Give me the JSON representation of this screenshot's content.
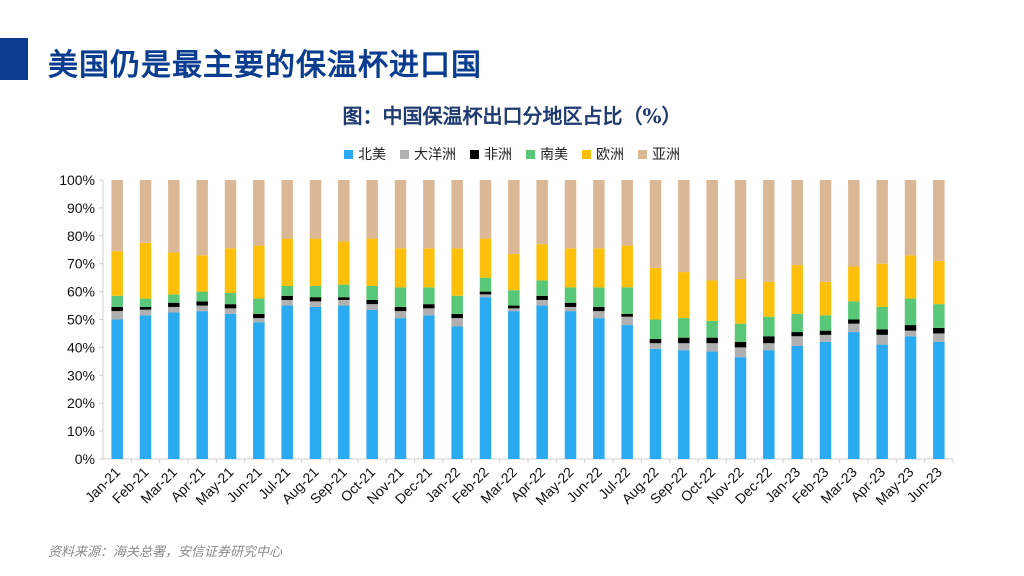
{
  "slide_title": "美国仍是最主要的保温杯进口国",
  "source": "资料来源：海关总署，安信证券研究中心",
  "colors": {
    "accent": "#0a3d8f",
    "北美": "#2aaaf0",
    "大洋洲": "#b0b0b0",
    "非洲": "#000000",
    "南美": "#58c878",
    "欧洲": "#fcbf0a",
    "亚洲": "#dbb895"
  },
  "chart_data": {
    "type": "bar",
    "stacked": true,
    "title": "图：中国保温杯出口分地区占比（%）",
    "legend": [
      "北美",
      "大洋洲",
      "非洲",
      "南美",
      "欧洲",
      "亚洲"
    ],
    "legend_position": "top",
    "y_ticks": [
      "0%",
      "10%",
      "20%",
      "30%",
      "40%",
      "50%",
      "60%",
      "70%",
      "80%",
      "90%",
      "100%"
    ],
    "ylim": [
      0,
      100
    ],
    "categories": [
      "Jan-21",
      "Feb-21",
      "Mar-21",
      "Apr-21",
      "May-21",
      "Jun-21",
      "Jul-21",
      "Aug-21",
      "Sep-21",
      "Oct-21",
      "Nov-21",
      "Dec-21",
      "Jan-22",
      "Feb-22",
      "Mar-22",
      "Apr-22",
      "May-22",
      "Jun-22",
      "Jul-22",
      "Aug-22",
      "Sep-22",
      "Oct-22",
      "Nov-22",
      "Dec-22",
      "Jan-23",
      "Feb-23",
      "Mar-23",
      "Apr-23",
      "May-23",
      "Jun-23"
    ],
    "series": [
      {
        "name": "北美",
        "values": [
          50,
          51.5,
          52.5,
          53,
          52,
          49,
          55,
          54.5,
          55,
          53.5,
          50.5,
          51.5,
          47.5,
          58,
          53,
          55,
          53,
          50.5,
          48,
          39.5,
          39,
          38.5,
          36.5,
          39,
          40.5,
          42,
          45.5,
          41,
          44,
          42
        ]
      },
      {
        "name": "大洋洲",
        "values": [
          3,
          2,
          2,
          2,
          2,
          1.5,
          2,
          2,
          2,
          2,
          2.5,
          2.5,
          3,
          1,
          1,
          2,
          1.5,
          2.5,
          3,
          2,
          2.5,
          3,
          3.5,
          2.5,
          3.5,
          2.5,
          3,
          3.5,
          2,
          3
        ]
      },
      {
        "name": "非洲",
        "values": [
          1.5,
          1,
          1.5,
          1.5,
          1.5,
          1.5,
          1.5,
          1.5,
          1,
          1.5,
          1.5,
          1.5,
          1.5,
          1,
          1,
          1.5,
          1.5,
          1.5,
          1,
          1.5,
          2,
          2,
          2,
          2.5,
          1.5,
          1.5,
          1.5,
          2,
          2,
          2
        ]
      },
      {
        "name": "南美",
        "values": [
          4,
          3,
          3,
          3.5,
          4,
          5.5,
          3.5,
          4,
          4.5,
          5,
          7,
          6,
          6.5,
          5,
          5.5,
          5.5,
          5.5,
          7,
          9.5,
          7,
          7,
          6,
          6.5,
          7,
          6.5,
          5.5,
          6.5,
          8,
          9.5,
          8.5
        ]
      },
      {
        "name": "欧洲",
        "values": [
          16,
          20,
          15,
          13,
          16,
          19,
          17,
          17,
          15.5,
          17,
          14,
          14,
          17,
          14,
          13,
          13,
          14,
          14,
          15,
          18.5,
          16.5,
          14.5,
          16,
          12.5,
          17.5,
          12,
          12.5,
          15.5,
          15.5,
          15.5
        ]
      },
      {
        "name": "亚洲",
        "values": [
          25.5,
          22.5,
          26,
          27,
          24.5,
          23.5,
          21,
          21,
          22,
          21,
          24.5,
          24.5,
          24.5,
          21,
          26.5,
          23,
          24.5,
          24.5,
          23.5,
          31.5,
          33,
          36,
          35.5,
          36.5,
          30.5,
          36.5,
          31,
          30,
          27,
          29
        ]
      }
    ]
  }
}
